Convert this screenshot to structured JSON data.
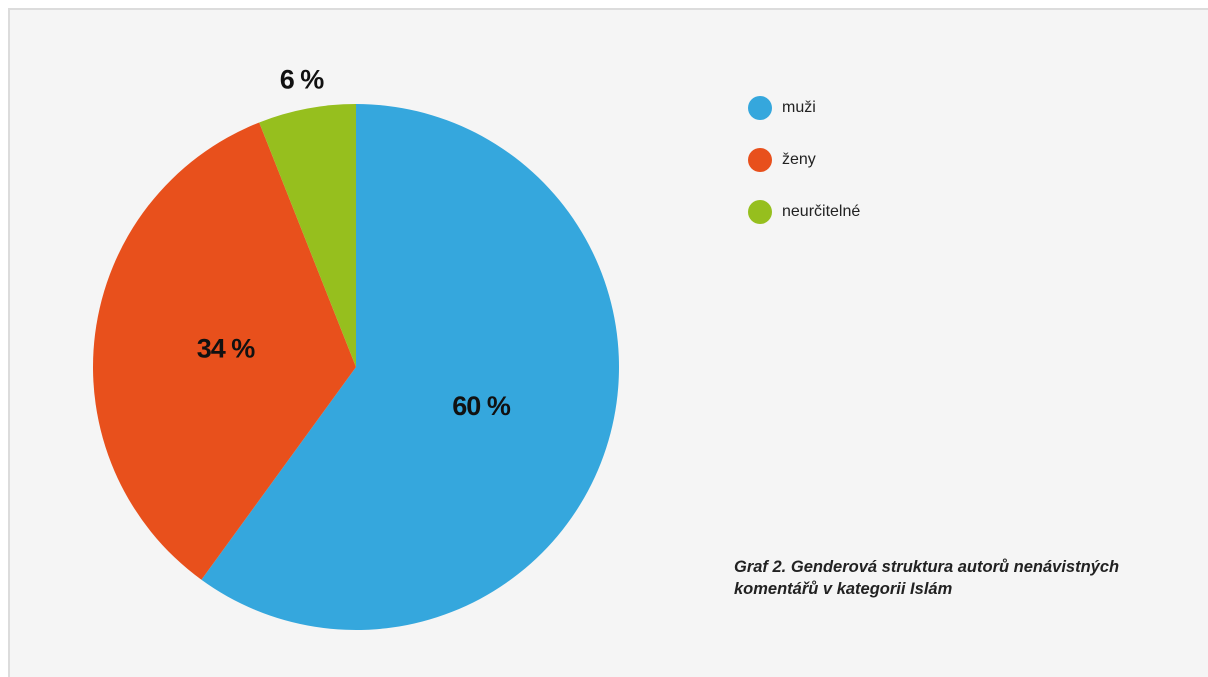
{
  "chart_data": {
    "type": "pie",
    "title": "Graf 2. Genderová struktura autorů nenávistných komentářů v kategorii Islám",
    "categories": [
      "muži",
      "ženy",
      "neurčitelné"
    ],
    "values": [
      60,
      34,
      6
    ],
    "value_labels": [
      "60 %",
      "34 %",
      "6 %"
    ],
    "colors": [
      "#35a7dd",
      "#e8501c",
      "#96bf1e"
    ],
    "legend": "top-right"
  }
}
